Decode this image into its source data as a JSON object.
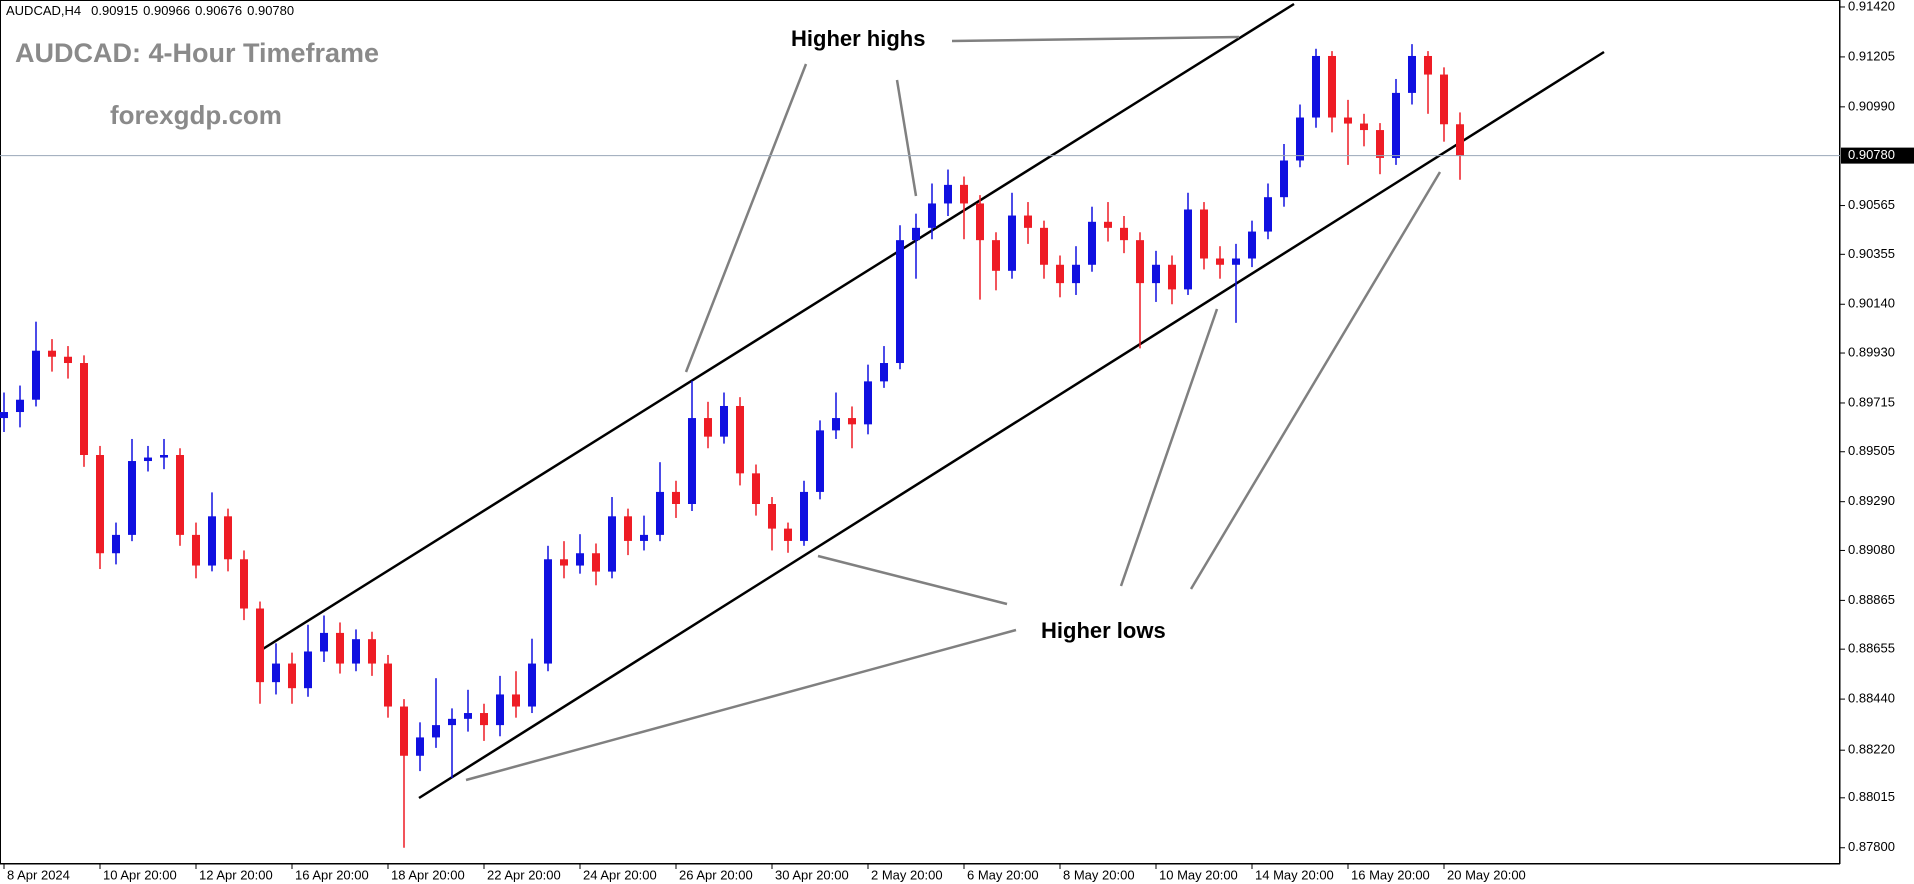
{
  "chart_data": {
    "type": "candlestick",
    "header": {
      "symbol": "AUDCAD,H4",
      "values": [
        "0.90915",
        "0.90966",
        "0.90676",
        "0.90780"
      ]
    },
    "title": "AUDCAD: 4-Hour Timeframe",
    "subtitle": "forexgdp.com",
    "annotations": [
      "Higher highs",
      "Higher lows"
    ],
    "price_label": "0.90780",
    "up_color": "#1010e0",
    "down_color": "#ee1c25",
    "price_line_color": "#9aa7b8",
    "categories": [
      "8 Apr 2024",
      null,
      null,
      null,
      null,
      null,
      "10 Apr 20:00",
      null,
      null,
      null,
      null,
      null,
      "12 Apr 20:00",
      null,
      null,
      null,
      null,
      null,
      "16 Apr 20:00",
      null,
      null,
      null,
      null,
      null,
      "18 Apr 20:00",
      null,
      null,
      null,
      null,
      null,
      "22 Apr 20:00",
      null,
      null,
      null,
      null,
      null,
      "24 Apr 20:00",
      null,
      null,
      null,
      null,
      null,
      "26 Apr 20:00",
      null,
      null,
      null,
      null,
      null,
      "30 Apr 20:00",
      null,
      null,
      null,
      null,
      null,
      "2 May 20:00",
      null,
      null,
      null,
      null,
      null,
      "6 May 20:00",
      null,
      null,
      null,
      null,
      null,
      "8 May 20:00",
      null,
      null,
      null,
      null,
      null,
      "10 May 20:00",
      null,
      null,
      null,
      null,
      null,
      "14 May 20:00",
      null,
      null,
      null,
      null,
      null,
      "16 May 20:00",
      null,
      null,
      null,
      null,
      null,
      "20 May 20:00",
      null
    ],
    "open": [
      0.8965,
      0.89676,
      0.89729,
      0.8994,
      0.89914,
      0.89887,
      0.89491,
      0.89068,
      0.89147,
      0.89465,
      0.8948,
      0.89491,
      0.89147,
      0.89015,
      0.89227,
      0.89042,
      0.8883,
      0.88513,
      0.88593,
      0.88487,
      0.88645,
      0.88725,
      0.88593,
      0.88698,
      0.88593,
      0.88408,
      0.88196,
      0.88275,
      0.88328,
      0.88355,
      0.8838,
      0.88328,
      0.8846,
      0.88408,
      0.88593,
      0.89042,
      0.89015,
      0.89068,
      0.88989,
      0.89227,
      0.89121,
      0.89147,
      0.89332,
      0.8928,
      0.8965,
      0.8957,
      0.89702,
      0.89412,
      0.8928,
      0.89174,
      0.89121,
      0.89332,
      0.89597,
      0.8965,
      0.89623,
      0.89808,
      0.89887,
      0.90416,
      0.90469,
      0.90574,
      0.90654,
      0.90574,
      0.90416,
      0.90284,
      0.90522,
      0.90469,
      0.9031,
      0.90231,
      0.9031,
      0.90495,
      0.90469,
      0.90416,
      0.90231,
      0.9031,
      0.90204,
      0.90548,
      0.90337,
      0.9031,
      0.90337,
      0.90453,
      0.90601,
      0.90759,
      0.90944,
      0.91209,
      0.90944,
      0.90918,
      0.9089,
      0.9077,
      0.9105,
      0.91209,
      0.91129,
      0.90915
    ],
    "high": [
      0.8976,
      0.8979,
      0.90065,
      0.8999,
      0.8996,
      0.8992,
      0.8953,
      0.892,
      0.8956,
      0.8953,
      0.8956,
      0.8952,
      0.892,
      0.8933,
      0.8926,
      0.8908,
      0.8886,
      0.8868,
      0.8864,
      0.8876,
      0.888,
      0.8877,
      0.8874,
      0.8873,
      0.8863,
      0.8844,
      0.8834,
      0.8853,
      0.884,
      0.8848,
      0.8842,
      0.8854,
      0.8856,
      0.887,
      0.891,
      0.8912,
      0.8915,
      0.8911,
      0.8931,
      0.8926,
      0.8923,
      0.8946,
      0.8938,
      0.8981,
      0.8972,
      0.8976,
      0.8974,
      0.8945,
      0.8931,
      0.892,
      0.8938,
      0.8964,
      0.8976,
      0.897,
      0.8988,
      0.8996,
      0.9048,
      0.9053,
      0.9066,
      0.9072,
      0.9069,
      0.9061,
      0.9045,
      0.9062,
      0.9058,
      0.905,
      0.9035,
      0.9039,
      0.9056,
      0.9058,
      0.9052,
      0.9045,
      0.9037,
      0.9035,
      0.9062,
      0.9058,
      0.9039,
      0.904,
      0.905,
      0.9066,
      0.9083,
      0.91,
      0.9124,
      0.9123,
      0.9102,
      0.9096,
      0.9092,
      0.9111,
      0.9126,
      0.9123,
      0.9116,
      0.90966
    ],
    "low": [
      0.8959,
      0.8961,
      0.897,
      0.8985,
      0.8982,
      0.8944,
      0.89,
      0.8902,
      0.8912,
      0.8942,
      0.8943,
      0.891,
      0.8896,
      0.8899,
      0.8899,
      0.8878,
      0.8842,
      0.8846,
      0.8842,
      0.8845,
      0.886,
      0.8855,
      0.8856,
      0.8854,
      0.8836,
      0.878,
      0.8813,
      0.8823,
      0.881,
      0.883,
      0.8826,
      0.8828,
      0.8836,
      0.8838,
      0.8856,
      0.8896,
      0.8898,
      0.8893,
      0.8896,
      0.8906,
      0.8908,
      0.8912,
      0.8922,
      0.8925,
      0.8952,
      0.8954,
      0.8936,
      0.8923,
      0.8908,
      0.8907,
      0.891,
      0.893,
      0.8956,
      0.8952,
      0.8958,
      0.8978,
      0.8986,
      0.9025,
      0.9042,
      0.9052,
      0.9042,
      0.9016,
      0.902,
      0.9025,
      0.904,
      0.9025,
      0.9017,
      0.9018,
      0.9028,
      0.9041,
      0.9036,
      0.8995,
      0.9015,
      0.9014,
      0.9018,
      0.9029,
      0.9025,
      0.9006,
      0.903,
      0.9042,
      0.9056,
      0.9073,
      0.909,
      0.9088,
      0.9074,
      0.9082,
      0.907,
      0.9074,
      0.91,
      0.9096,
      0.9084,
      0.90676
    ],
    "close": [
      0.89676,
      0.89729,
      0.8994,
      0.89914,
      0.89887,
      0.89491,
      0.89068,
      0.89147,
      0.89465,
      0.8948,
      0.89491,
      0.89147,
      0.89015,
      0.89227,
      0.89042,
      0.8883,
      0.88513,
      0.88593,
      0.88487,
      0.88645,
      0.88725,
      0.88593,
      0.88698,
      0.88593,
      0.88408,
      0.88196,
      0.88275,
      0.88328,
      0.88355,
      0.8838,
      0.88328,
      0.8846,
      0.88408,
      0.88593,
      0.89042,
      0.89015,
      0.89068,
      0.88989,
      0.89227,
      0.89121,
      0.89147,
      0.89332,
      0.8928,
      0.8965,
      0.8957,
      0.89702,
      0.89412,
      0.8928,
      0.89174,
      0.89121,
      0.89332,
      0.89597,
      0.8965,
      0.89623,
      0.89808,
      0.89887,
      0.90416,
      0.90469,
      0.90574,
      0.90654,
      0.90574,
      0.90416,
      0.90284,
      0.90522,
      0.90469,
      0.9031,
      0.90231,
      0.9031,
      0.90495,
      0.90469,
      0.90416,
      0.90231,
      0.9031,
      0.90204,
      0.90548,
      0.90337,
      0.9031,
      0.90337,
      0.90453,
      0.90601,
      0.90759,
      0.90944,
      0.91209,
      0.90944,
      0.90918,
      0.9089,
      0.9077,
      0.9105,
      0.91209,
      0.91129,
      0.90915,
      0.9078
    ],
    "ylim": [
      0.8773,
      0.9145
    ],
    "yticks": [
      {
        "value": 0.9142,
        "label": "0.91420"
      },
      0.91205,
      {
        "value": 0.9099,
        "label": "0.90990"
      },
      0.90565,
      0.90355,
      {
        "value": 0.9014,
        "label": "0.90140"
      },
      {
        "value": 0.8993,
        "label": "0.89930"
      },
      0.89715,
      0.89505,
      {
        "value": 0.8929,
        "label": "0.89290"
      },
      {
        "value": 0.8908,
        "label": "0.89080"
      },
      0.88865,
      0.88655,
      {
        "value": 0.8844,
        "label": "0.88440"
      },
      {
        "value": 0.8822,
        "label": "0.88220"
      },
      0.88015,
      {
        "value": 0.878,
        "label": "0.87800"
      }
    ]
  }
}
